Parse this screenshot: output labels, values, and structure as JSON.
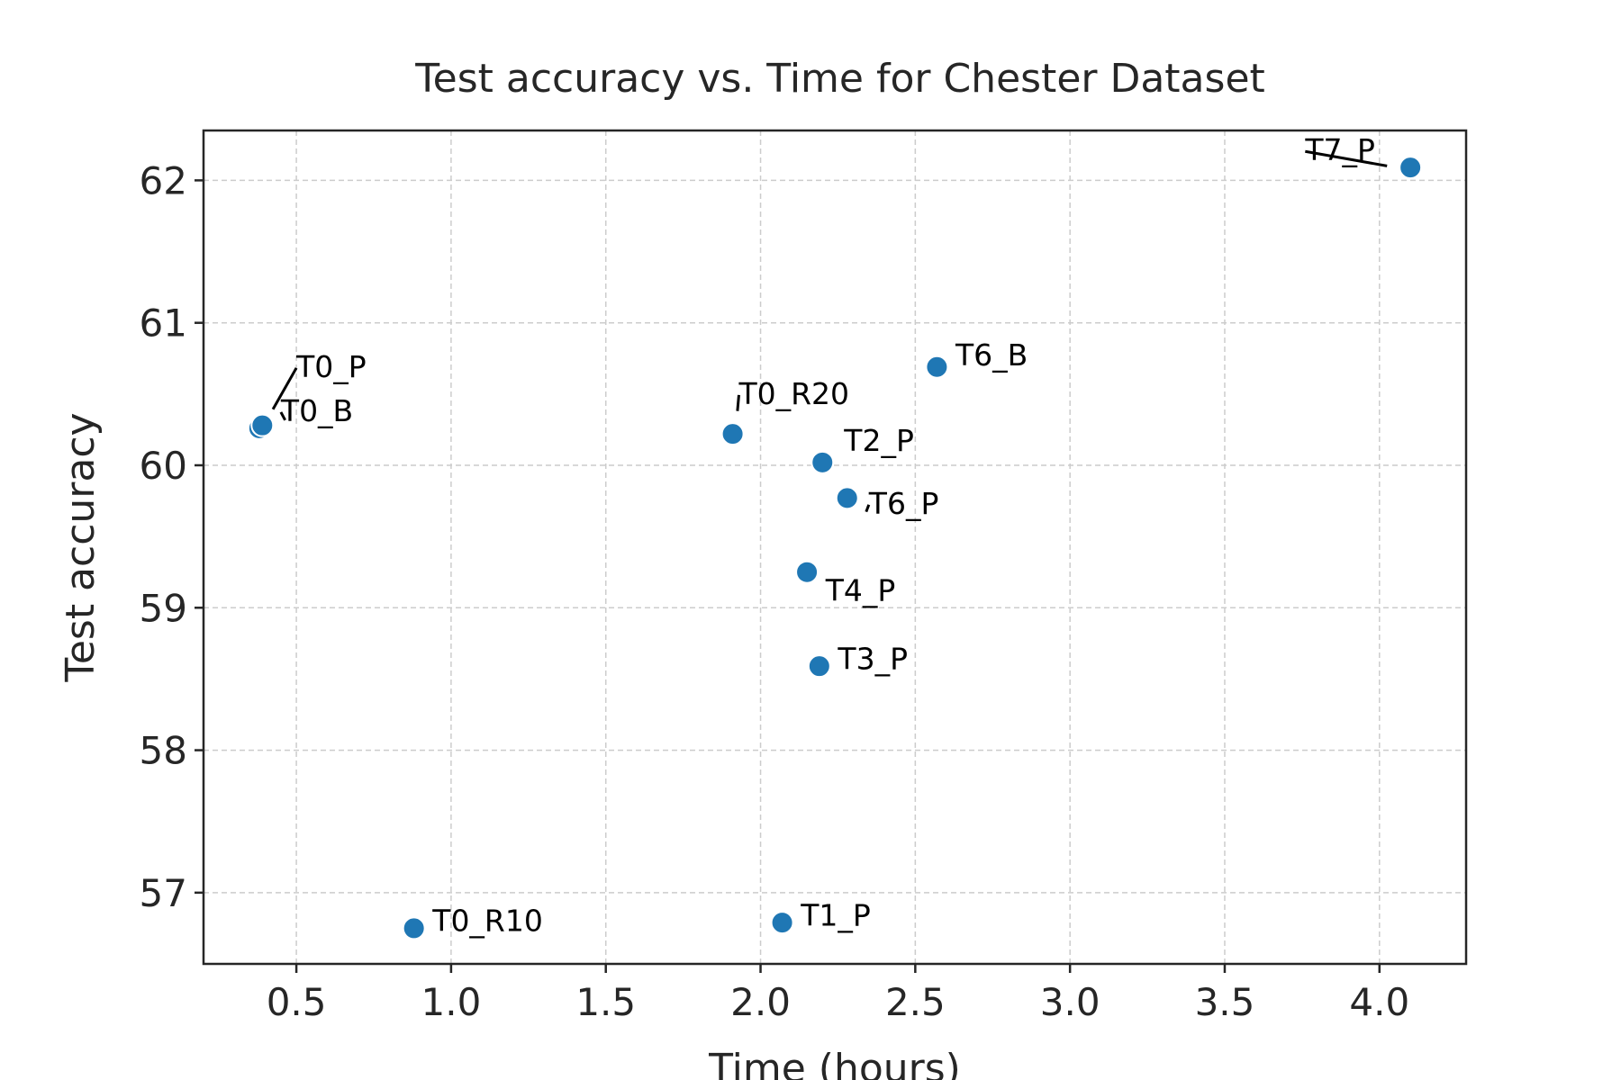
{
  "chart_data": {
    "type": "scatter",
    "title": "Test accuracy vs. Time for Chester Dataset",
    "xlabel": "Time (hours)",
    "ylabel": "Test accuracy",
    "xlim": [
      0.2,
      4.28
    ],
    "ylim": [
      56.5,
      62.35
    ],
    "xticks": [
      0.5,
      1.0,
      1.5,
      2.0,
      2.5,
      3.0,
      3.5,
      4.0
    ],
    "xtick_labels": [
      "0.5",
      "1.0",
      "1.5",
      "2.0",
      "2.5",
      "3.0",
      "3.5",
      "4.0"
    ],
    "yticks": [
      57,
      58,
      59,
      60,
      61,
      62
    ],
    "ytick_labels": [
      "57",
      "58",
      "59",
      "60",
      "61",
      "62"
    ],
    "grid": true,
    "marker_color": "#1f77b4",
    "points": [
      {
        "label": "T0_P",
        "x": 0.38,
        "y": 60.26,
        "lx": 0.5,
        "ly": 60.62,
        "leader": true
      },
      {
        "label": "T0_B",
        "x": 0.39,
        "y": 60.28,
        "lx": 0.45,
        "ly": 60.31,
        "leader": true
      },
      {
        "label": "T0_R10",
        "x": 0.88,
        "y": 56.75,
        "lx": 0.94,
        "ly": 56.73,
        "leader": false
      },
      {
        "label": "T0_R20",
        "x": 1.91,
        "y": 60.22,
        "lx": 1.93,
        "ly": 60.43,
        "leader": true
      },
      {
        "label": "T1_P",
        "x": 2.07,
        "y": 56.79,
        "lx": 2.13,
        "ly": 56.77,
        "leader": false
      },
      {
        "label": "T2_P",
        "x": 2.2,
        "y": 60.02,
        "lx": 2.27,
        "ly": 60.1,
        "leader": false
      },
      {
        "label": "T3_P",
        "x": 2.19,
        "y": 58.59,
        "lx": 2.25,
        "ly": 58.57,
        "leader": false
      },
      {
        "label": "T4_P",
        "x": 2.15,
        "y": 59.25,
        "lx": 2.21,
        "ly": 59.05,
        "leader": false
      },
      {
        "label": "T6_P",
        "x": 2.28,
        "y": 59.77,
        "lx": 2.35,
        "ly": 59.66,
        "leader": true
      },
      {
        "label": "T6_B",
        "x": 2.57,
        "y": 60.69,
        "lx": 2.63,
        "ly": 60.7,
        "leader": false
      },
      {
        "label": "T7_P",
        "x": 4.1,
        "y": 62.09,
        "lx": 3.76,
        "ly": 62.14,
        "leader": true
      }
    ]
  }
}
